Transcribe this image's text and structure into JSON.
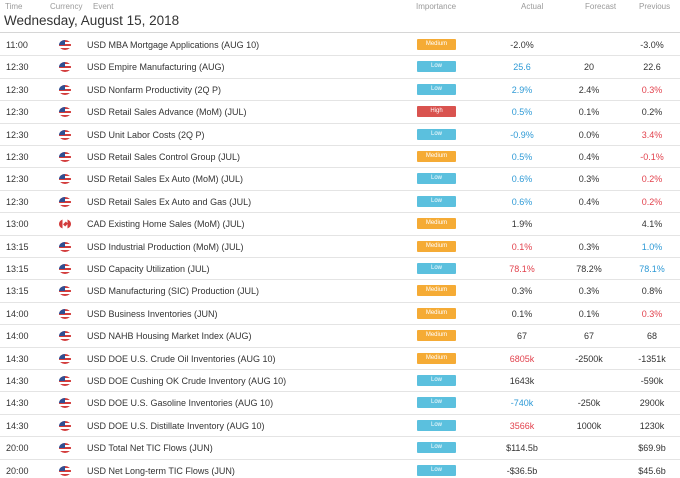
{
  "columns": {
    "time": "Time",
    "currency": "Currency",
    "event": "Event",
    "importance": "Importance",
    "actual": "Actual",
    "forecast": "Forecast",
    "previous": "Previous"
  },
  "date_title": "Wednesday, August 15, 2018",
  "colors": {
    "importance": {
      "Low": "#5bc0de",
      "Medium": "#f5ab35",
      "High": "#d9534f"
    },
    "positive": "#2e9ad6",
    "negative": "#e2424d",
    "neutral": "#333333"
  },
  "rows": [
    {
      "time": "11:00",
      "flag": "us",
      "event": "USD MBA Mortgage Applications (AUG 10)",
      "importance": "Medium",
      "actual": "-2.0%",
      "actual_tone": "neutral",
      "forecast": "",
      "previous": "-3.0%",
      "previous_tone": "neutral"
    },
    {
      "time": "12:30",
      "flag": "us",
      "event": "USD Empire Manufacturing (AUG)",
      "importance": "Low",
      "actual": "25.6",
      "actual_tone": "pos",
      "forecast": "20",
      "previous": "22.6",
      "previous_tone": "neutral"
    },
    {
      "time": "12:30",
      "flag": "us",
      "event": "USD Nonfarm Productivity (2Q P)",
      "importance": "Low",
      "actual": "2.9%",
      "actual_tone": "pos",
      "forecast": "2.4%",
      "previous": "0.3%",
      "previous_tone": "neg"
    },
    {
      "time": "12:30",
      "flag": "us",
      "event": "USD Retail Sales Advance (MoM) (JUL)",
      "importance": "High",
      "actual": "0.5%",
      "actual_tone": "pos",
      "forecast": "0.1%",
      "previous": "0.2%",
      "previous_tone": "neutral"
    },
    {
      "time": "12:30",
      "flag": "us",
      "event": "USD Unit Labor Costs (2Q P)",
      "importance": "Low",
      "actual": "-0.9%",
      "actual_tone": "pos",
      "forecast": "0.0%",
      "previous": "3.4%",
      "previous_tone": "neg"
    },
    {
      "time": "12:30",
      "flag": "us",
      "event": "USD Retail Sales Control Group (JUL)",
      "importance": "Medium",
      "actual": "0.5%",
      "actual_tone": "pos",
      "forecast": "0.4%",
      "previous": "-0.1%",
      "previous_tone": "neg"
    },
    {
      "time": "12:30",
      "flag": "us",
      "event": "USD Retail Sales Ex Auto (MoM) (JUL)",
      "importance": "Low",
      "actual": "0.6%",
      "actual_tone": "pos",
      "forecast": "0.3%",
      "previous": "0.2%",
      "previous_tone": "neg"
    },
    {
      "time": "12:30",
      "flag": "us",
      "event": "USD Retail Sales Ex Auto and Gas (JUL)",
      "importance": "Low",
      "actual": "0.6%",
      "actual_tone": "pos",
      "forecast": "0.4%",
      "previous": "0.2%",
      "previous_tone": "neg"
    },
    {
      "time": "13:00",
      "flag": "ca",
      "event": "CAD Existing Home Sales (MoM) (JUL)",
      "importance": "Medium",
      "actual": "1.9%",
      "actual_tone": "neutral",
      "forecast": "",
      "previous": "4.1%",
      "previous_tone": "neutral"
    },
    {
      "time": "13:15",
      "flag": "us",
      "event": "USD Industrial Production (MoM) (JUL)",
      "importance": "Medium",
      "actual": "0.1%",
      "actual_tone": "neg",
      "forecast": "0.3%",
      "previous": "1.0%",
      "previous_tone": "pos"
    },
    {
      "time": "13:15",
      "flag": "us",
      "event": "USD Capacity Utilization (JUL)",
      "importance": "Low",
      "actual": "78.1%",
      "actual_tone": "neg",
      "forecast": "78.2%",
      "previous": "78.1%",
      "previous_tone": "pos"
    },
    {
      "time": "13:15",
      "flag": "us",
      "event": "USD Manufacturing (SIC) Production (JUL)",
      "importance": "Medium",
      "actual": "0.3%",
      "actual_tone": "neutral",
      "forecast": "0.3%",
      "previous": "0.8%",
      "previous_tone": "neutral"
    },
    {
      "time": "14:00",
      "flag": "us",
      "event": "USD Business Inventories (JUN)",
      "importance": "Medium",
      "actual": "0.1%",
      "actual_tone": "neutral",
      "forecast": "0.1%",
      "previous": "0.3%",
      "previous_tone": "neg"
    },
    {
      "time": "14:00",
      "flag": "us",
      "event": "USD NAHB Housing Market Index (AUG)",
      "importance": "Medium",
      "actual": "67",
      "actual_tone": "neutral",
      "forecast": "67",
      "previous": "68",
      "previous_tone": "neutral"
    },
    {
      "time": "14:30",
      "flag": "us",
      "event": "USD DOE U.S. Crude Oil Inventories (AUG 10)",
      "importance": "Medium",
      "actual": "6805k",
      "actual_tone": "neg",
      "forecast": "-2500k",
      "previous": "-1351k",
      "previous_tone": "neutral"
    },
    {
      "time": "14:30",
      "flag": "us",
      "event": "USD DOE Cushing OK Crude Inventory (AUG 10)",
      "importance": "Low",
      "actual": "1643k",
      "actual_tone": "neutral",
      "forecast": "",
      "previous": "-590k",
      "previous_tone": "neutral"
    },
    {
      "time": "14:30",
      "flag": "us",
      "event": "USD DOE U.S. Gasoline Inventories (AUG 10)",
      "importance": "Low",
      "actual": "-740k",
      "actual_tone": "pos",
      "forecast": "-250k",
      "previous": "2900k",
      "previous_tone": "neutral"
    },
    {
      "time": "14:30",
      "flag": "us",
      "event": "USD DOE U.S. Distillate Inventory (AUG 10)",
      "importance": "Low",
      "actual": "3566k",
      "actual_tone": "neg",
      "forecast": "1000k",
      "previous": "1230k",
      "previous_tone": "neutral"
    },
    {
      "time": "20:00",
      "flag": "us",
      "event": "USD Total Net TIC Flows (JUN)",
      "importance": "Low",
      "actual": "$114.5b",
      "actual_tone": "neutral",
      "forecast": "",
      "previous": "$69.9b",
      "previous_tone": "neutral"
    },
    {
      "time": "20:00",
      "flag": "us",
      "event": "USD Net Long-term TIC Flows (JUN)",
      "importance": "Low",
      "actual": "-$36.5b",
      "actual_tone": "neutral",
      "forecast": "",
      "previous": "$45.6b",
      "previous_tone": "neutral"
    }
  ]
}
